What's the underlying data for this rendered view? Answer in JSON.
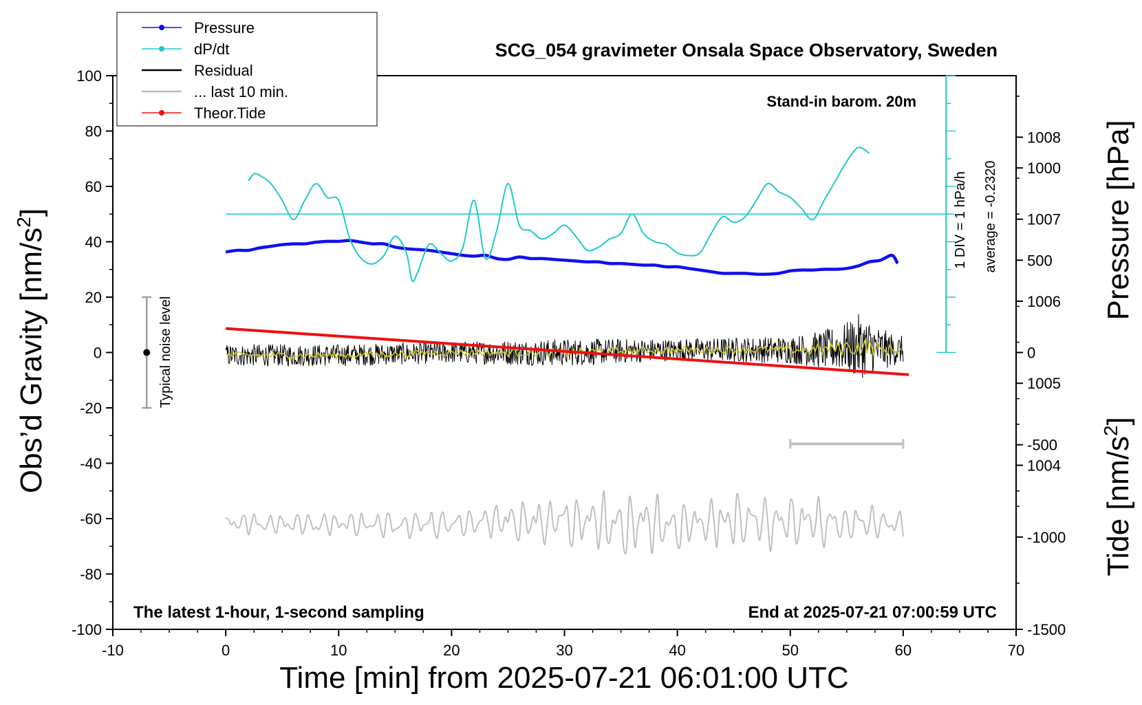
{
  "chart_data": {
    "type": "line",
    "title": "SCG_054 gravimeter Onsala Space Observatory, Sweden",
    "subtitle_left": "The latest 1-hour, 1-second sampling",
    "subtitle_right": "End at 2025-07-21 07:00:59 UTC",
    "stand_in_note": "Stand-in barom. 20m",
    "xlabel": "Time [min] from 2025-07-21 06:01:00 UTC",
    "xlim": [
      -10,
      70
    ],
    "xticks": [
      "-10",
      "0",
      "10",
      "20",
      "30",
      "40",
      "50",
      "60",
      "70"
    ],
    "ylabel_left": "Obs’d Gravity [nm/s",
    "ylabel_left_sup": "2",
    "ylabel_left_close": "]",
    "ylim_left": [
      -100,
      100
    ],
    "yticks_left": [
      "100",
      "80",
      "60",
      "40",
      "20",
      "0",
      "-20",
      "-40",
      "-60",
      "-80",
      "-100"
    ],
    "ylabel_right_pressure": "Pressure [hPa]",
    "ylim_right_pressure": [
      1002,
      1008.75
    ],
    "yticks_right_pressure": [
      "1008",
      "1007",
      "1006",
      "1005",
      "1004"
    ],
    "ylabel_right_tide": "Tide [nm/s",
    "ylabel_right_tide_sup": "2",
    "ylabel_right_tide_close": "]",
    "ylim_right_tide": [
      -1500,
      1500
    ],
    "yticks_right_tide": [
      "1000",
      "500",
      "0",
      "-500",
      "-1000",
      "-1500"
    ],
    "grid": false,
    "legend_position": "top-left",
    "legend": [
      {
        "label": "Pressure",
        "color": "#1010ee",
        "marker": "dot"
      },
      {
        "label": "dP/dt",
        "color": "#20c8c8",
        "marker": "dot"
      },
      {
        "label": "Residual",
        "color": "#000000",
        "marker": "none"
      },
      {
        "label": "... last 10 min.",
        "color": "#c0c0c0",
        "marker": "none"
      },
      {
        "label": "Theor.Tide",
        "color": "#ee1010",
        "marker": "dot"
      }
    ],
    "noise_label": "Typical noise level",
    "noise_bar": {
      "x": -7,
      "y_low": -20,
      "y_high": 20,
      "y_mid": 0
    },
    "dpdt_scale_label": "1 DIV = 1 hPa/h",
    "dpdt_average_label": "average = -0.2320",
    "last10_bar": {
      "x_start": 50,
      "x_end": 60,
      "y": -33
    },
    "series": [
      {
        "name": "Pressure",
        "axis": "pressure",
        "color": "#1010ee",
        "x": [
          0,
          1,
          2,
          3,
          4,
          5,
          6,
          7,
          8,
          9,
          10,
          11,
          12,
          13,
          14,
          15,
          16,
          17,
          18,
          19,
          20,
          21,
          22,
          23,
          24,
          25,
          26,
          27,
          28,
          29,
          30,
          31,
          32,
          33,
          34,
          35,
          36,
          37,
          38,
          39,
          40,
          41,
          42,
          43,
          44,
          45,
          46,
          47,
          48,
          49,
          50,
          51,
          52,
          53,
          54,
          55,
          56,
          57,
          58,
          59,
          59.5
        ],
        "y": [
          1006.6,
          1006.62,
          1006.62,
          1006.65,
          1006.67,
          1006.69,
          1006.7,
          1006.7,
          1006.72,
          1006.73,
          1006.73,
          1006.74,
          1006.72,
          1006.7,
          1006.7,
          1006.66,
          1006.64,
          1006.63,
          1006.62,
          1006.6,
          1006.58,
          1006.56,
          1006.55,
          1006.56,
          1006.52,
          1006.51,
          1006.54,
          1006.52,
          1006.52,
          1006.51,
          1006.5,
          1006.49,
          1006.48,
          1006.48,
          1006.46,
          1006.46,
          1006.45,
          1006.44,
          1006.44,
          1006.42,
          1006.42,
          1006.4,
          1006.38,
          1006.36,
          1006.34,
          1006.34,
          1006.34,
          1006.33,
          1006.33,
          1006.34,
          1006.37,
          1006.38,
          1006.38,
          1006.39,
          1006.39,
          1006.4,
          1006.43,
          1006.48,
          1006.5,
          1006.56,
          1006.46
        ]
      },
      {
        "name": "dP/dt",
        "axis": "left",
        "color": "#20c8c8",
        "x": [
          2,
          2.5,
          3,
          4,
          5,
          6,
          7,
          8,
          9,
          10,
          11,
          12,
          13,
          14,
          15,
          16,
          16.5,
          17,
          18,
          19,
          20,
          21,
          22,
          23,
          24,
          25,
          26,
          27,
          28,
          29,
          30,
          31,
          32,
          33,
          34,
          35,
          36,
          37,
          38,
          39,
          40,
          41,
          42,
          43,
          44,
          45,
          46,
          47,
          48,
          49,
          50,
          51,
          52,
          53,
          54,
          55,
          56,
          57
        ],
        "y": [
          62,
          64.5,
          64,
          61,
          55,
          48,
          55,
          61,
          56,
          55,
          41,
          34,
          32,
          35,
          42,
          36,
          26,
          29,
          39,
          36,
          33,
          38,
          55,
          34,
          44,
          61,
          46,
          44,
          41,
          43,
          46,
          42,
          37,
          38,
          41,
          43,
          50,
          43,
          40,
          39,
          36,
          35,
          36,
          43,
          49,
          47,
          49,
          55,
          61,
          58,
          56,
          52,
          48,
          55,
          62,
          69,
          74,
          72
        ]
      },
      {
        "name": "Theor.Tide",
        "axis": "tide",
        "color": "#ee1010",
        "x": [
          0,
          60.5
        ],
        "y": [
          130,
          -120
        ]
      }
    ],
    "residual_envelope": {
      "x": [
        0,
        10,
        20,
        30,
        40,
        50,
        53,
        55,
        56,
        57,
        58,
        59,
        60
      ],
      "center": [
        -1,
        -1,
        0,
        0,
        1,
        1,
        1,
        2,
        2,
        2,
        1,
        1,
        1
      ],
      "amplitude": [
        4,
        4,
        4,
        5,
        4,
        5,
        7,
        9,
        12,
        10,
        8,
        6,
        5
      ]
    },
    "last10_envelope": {
      "x": [
        0,
        10,
        20,
        25,
        30,
        35,
        40,
        45,
        50,
        55,
        60
      ],
      "center": [
        -62,
        -62,
        -62,
        -61,
        -61,
        -62,
        -62,
        -61,
        -61,
        -62,
        -62
      ],
      "amplitude": [
        4,
        4,
        5,
        8,
        8,
        12,
        9,
        10,
        9,
        6,
        5
      ]
    }
  }
}
